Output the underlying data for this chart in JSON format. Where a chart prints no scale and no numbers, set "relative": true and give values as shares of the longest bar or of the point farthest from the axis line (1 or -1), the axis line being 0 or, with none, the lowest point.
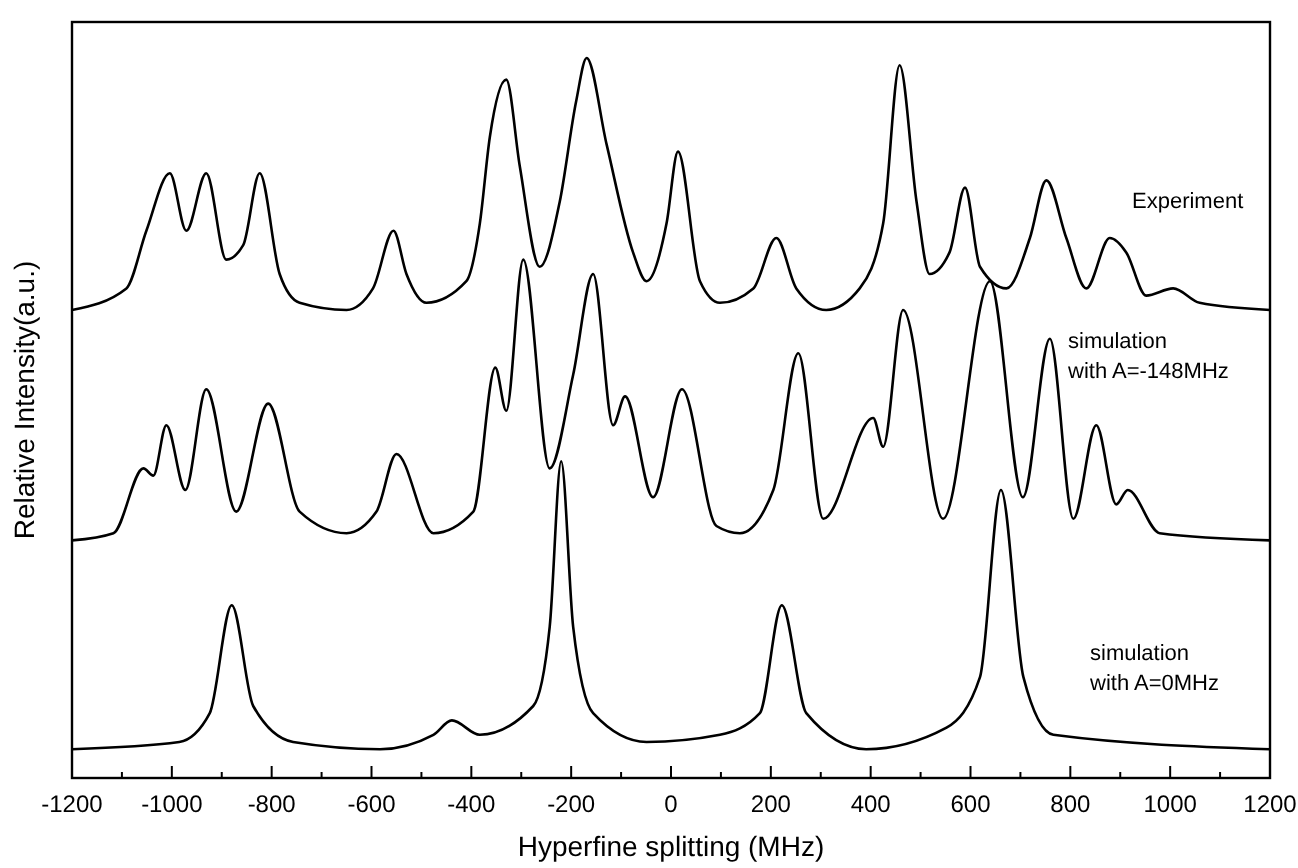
{
  "chart_data": {
    "type": "line",
    "relative": true,
    "xlabel": "Hyperfine splitting (MHz)",
    "ylabel": "Relative Intensity(a.u.)",
    "xlim": [
      -1200,
      1200
    ],
    "xticks": [
      -1200,
      {
        "value": -1100,
        "label": null
      },
      -1000,
      {
        "value": -900,
        "label": null
      },
      -800,
      {
        "value": -700,
        "label": null
      },
      -600,
      {
        "value": -500,
        "label": null
      },
      -400,
      {
        "value": -300,
        "label": null
      },
      -200,
      {
        "value": -100,
        "label": null
      },
      0,
      {
        "value": 100,
        "label": null
      },
      200,
      {
        "value": 300,
        "label": null
      },
      400,
      {
        "value": 500,
        "label": null
      },
      600,
      {
        "value": 700,
        "label": null
      },
      800,
      {
        "value": 900,
        "label": null
      },
      1000,
      {
        "value": 1100,
        "label": null
      },
      1200
    ],
    "grid": false,
    "marker": "none",
    "line_style": "solid",
    "series": [
      {
        "name": "Experiment",
        "color": "#000000",
        "x": [
          -1200,
          -1091,
          -1051,
          -1004,
          -971,
          -931,
          -891,
          -857,
          -824,
          -784,
          -744,
          -650,
          -597,
          -556,
          -530,
          -490,
          -410,
          -383,
          -363,
          -330,
          -303,
          -263,
          -223,
          -190,
          -169,
          -129,
          -76,
          -49,
          -9,
          14,
          58,
          98,
          165,
          211,
          251,
          311,
          378,
          425,
          458,
          492,
          518,
          558,
          589,
          619,
          672,
          719,
          752,
          792,
          832,
          879,
          912,
          952,
          1006,
          1059,
          1200
        ],
        "values": [
          0.65,
          0.68,
          0.76,
          0.84,
          0.76,
          0.84,
          0.72,
          0.74,
          0.84,
          0.7,
          0.66,
          0.65,
          0.68,
          0.76,
          0.7,
          0.66,
          0.69,
          0.77,
          0.89,
          0.97,
          0.85,
          0.71,
          0.8,
          0.94,
          1.0,
          0.88,
          0.73,
          0.69,
          0.77,
          0.87,
          0.69,
          0.66,
          0.68,
          0.75,
          0.68,
          0.65,
          0.68,
          0.77,
          0.99,
          0.8,
          0.7,
          0.73,
          0.82,
          0.71,
          0.68,
          0.75,
          0.83,
          0.75,
          0.68,
          0.75,
          0.73,
          0.67,
          0.68,
          0.66,
          0.65
        ]
      },
      {
        "name": "simulation with A=-148MHz",
        "color": "#000000",
        "x": [
          -1200,
          -1117,
          -1057,
          -1037,
          -1011,
          -973,
          -931,
          -871,
          -807,
          -744,
          -650,
          -590,
          -550,
          -476,
          -396,
          -352,
          -330,
          -296,
          -243,
          -196,
          -156,
          -116,
          -92,
          -36,
          22,
          91,
          138,
          205,
          255,
          305,
          405,
          425,
          465,
          545,
          639,
          705,
          759,
          806,
          852,
          892,
          915,
          979,
          1200
        ],
        "values": [
          0.33,
          0.34,
          0.43,
          0.42,
          0.49,
          0.4,
          0.54,
          0.37,
          0.52,
          0.37,
          0.34,
          0.37,
          0.45,
          0.34,
          0.37,
          0.57,
          0.51,
          0.72,
          0.43,
          0.56,
          0.7,
          0.49,
          0.53,
          0.39,
          0.54,
          0.35,
          0.34,
          0.4,
          0.59,
          0.36,
          0.5,
          0.46,
          0.65,
          0.36,
          0.69,
          0.39,
          0.61,
          0.36,
          0.49,
          0.38,
          0.4,
          0.34,
          0.33
        ]
      },
      {
        "name": "simulation with A=0MHz",
        "color": "#000000",
        "x": [
          -1200,
          -985,
          -924,
          -880,
          -837,
          -757,
          -583,
          -476,
          -439,
          -383,
          -276,
          -243,
          -220,
          -196,
          -156,
          -49,
          98,
          178,
          222,
          271,
          391,
          552,
          619,
          661,
          706,
          766,
          1200
        ],
        "values": [
          0.04,
          0.05,
          0.09,
          0.24,
          0.1,
          0.05,
          0.04,
          0.06,
          0.08,
          0.06,
          0.1,
          0.21,
          0.44,
          0.21,
          0.09,
          0.05,
          0.06,
          0.09,
          0.24,
          0.09,
          0.04,
          0.07,
          0.14,
          0.4,
          0.14,
          0.06,
          0.04
        ]
      }
    ]
  }
}
